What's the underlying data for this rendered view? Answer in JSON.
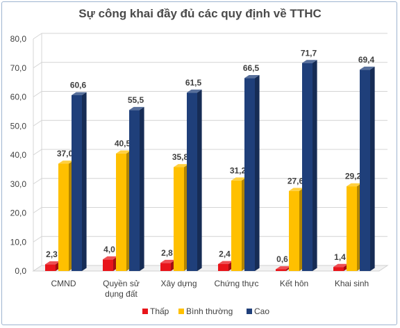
{
  "chart_data": {
    "type": "bar",
    "title": "Sự công khai đầy đủ các quy định về TTHC",
    "categories": [
      "CMND",
      "Quyền sử dụng đất",
      "Xây dựng",
      "Chứng thực",
      "Kết hôn",
      "Khai sinh"
    ],
    "category_lines": [
      [
        "CMND"
      ],
      [
        "Quyền sử",
        "dụng đất"
      ],
      [
        "Xây dựng"
      ],
      [
        "Chứng thực"
      ],
      [
        "Kết hôn"
      ],
      [
        "Khai sinh"
      ]
    ],
    "series": [
      {
        "name": "Thấp",
        "color": "#e8141a",
        "values": [
          2.3,
          4.0,
          2.8,
          2.4,
          0.6,
          1.4
        ],
        "labels": [
          "2,3",
          "4,0",
          "2,8",
          "2,4",
          "0,6",
          "1,4"
        ]
      },
      {
        "name": "Bình thường",
        "color": "#ffc000",
        "values": [
          37.0,
          40.5,
          35.8,
          31.2,
          27.6,
          29.2
        ],
        "labels": [
          "37,0",
          "40,5",
          "35,8",
          "31,2",
          "27,6",
          "29,2"
        ]
      },
      {
        "name": "Cao",
        "color": "#1f3f7a",
        "values": [
          60.6,
          55.5,
          61.5,
          66.5,
          71.7,
          69.4
        ],
        "labels": [
          "60,6",
          "55,5",
          "61,5",
          "66,5",
          "71,7",
          "69,4"
        ]
      }
    ],
    "ylim": [
      0,
      80
    ],
    "yticks": [
      0,
      10,
      20,
      30,
      40,
      50,
      60,
      70,
      80
    ],
    "ytick_labels": [
      "0,0",
      "10,0",
      "20,0",
      "30,0",
      "40,0",
      "50,0",
      "60,0",
      "70,0",
      "80,0"
    ],
    "grid": true,
    "legend": "bottom-center",
    "style": "3d-columns"
  }
}
